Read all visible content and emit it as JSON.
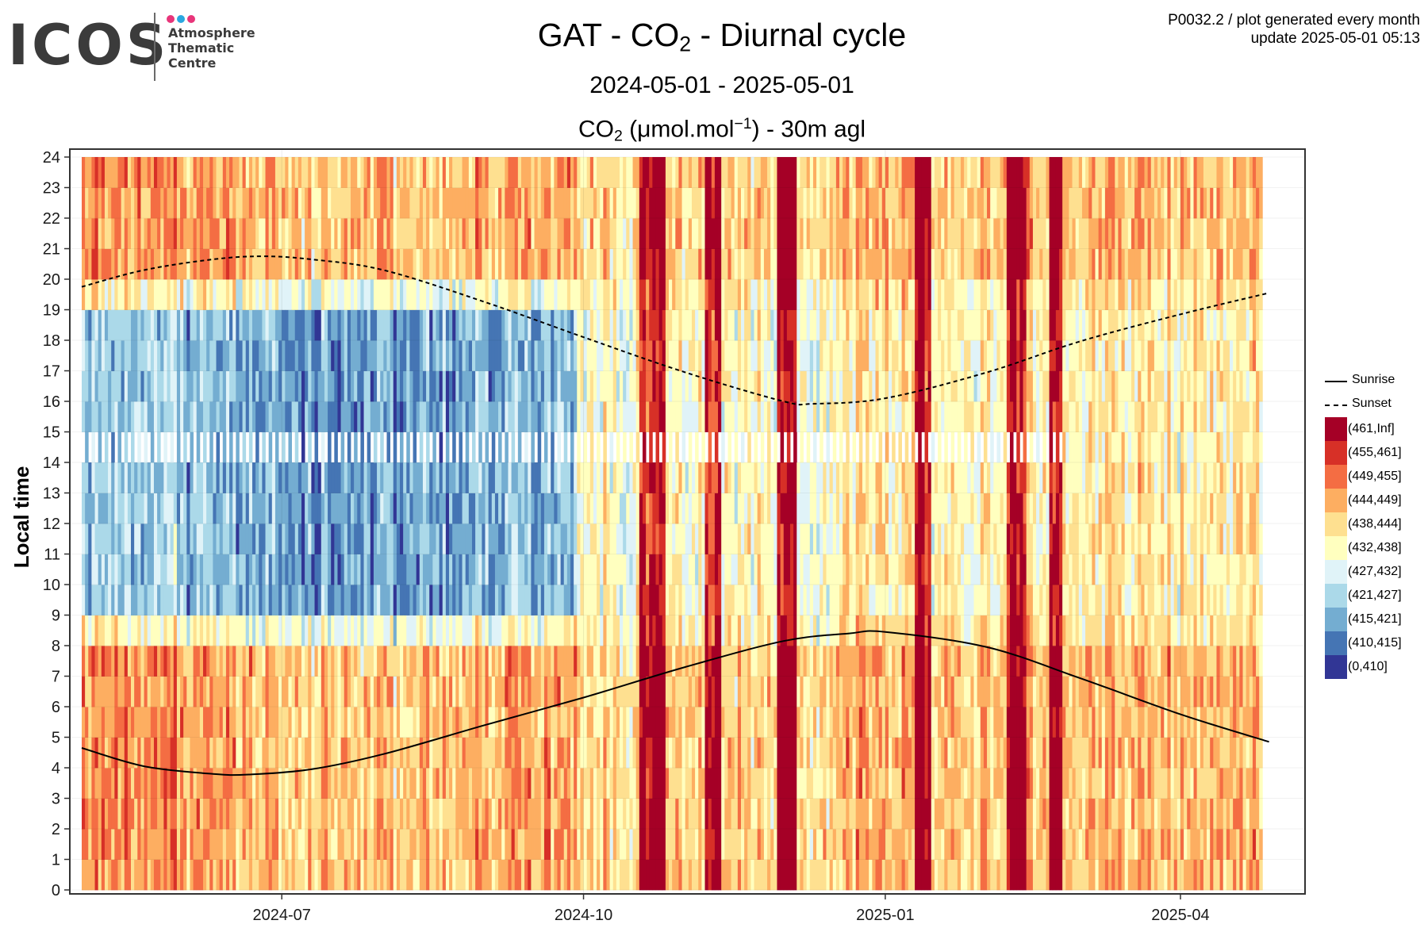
{
  "logo": {
    "word": "ICOS",
    "lines": [
      "Atmosphere",
      "Thematic",
      "Centre"
    ],
    "dot_colors": [
      "#e8357a",
      "#2aa7e0",
      "#e8357a"
    ]
  },
  "header": {
    "title_pre": "GAT - CO",
    "title_sub": "2",
    "title_post": " - Diurnal cycle",
    "date_range": "2024-05-01 - 2025-05-01",
    "unit_pre": "CO",
    "unit_sub": "2",
    "unit_mid": " (μmol.mol",
    "unit_sup": "−1",
    "unit_post": ") - 30m agl",
    "info_line1": "P0032.2 / plot generated every month",
    "info_line2": "update  2025-05-01 05:13"
  },
  "chart_data": {
    "type": "heatmap",
    "x_range": [
      "2024-05-01",
      "2025-05-01"
    ],
    "x_ticks": [
      "2024-07",
      "2024-10",
      "2025-01",
      "2025-04"
    ],
    "y_range": [
      0,
      24
    ],
    "y_ticks": [
      0,
      1,
      2,
      3,
      4,
      5,
      6,
      7,
      8,
      9,
      10,
      11,
      12,
      13,
      14,
      15,
      16,
      17,
      18,
      19,
      20,
      21,
      22,
      23,
      24
    ],
    "ylabel": "Local time",
    "grid": true,
    "legend_position": "right",
    "color_bins": [
      {
        "label": "(461,Inf]",
        "color": "#a50026"
      },
      {
        "label": "(455,461]",
        "color": "#d73027"
      },
      {
        "label": "(449,455]",
        "color": "#f46d43"
      },
      {
        "label": "(444,449]",
        "color": "#fdae61"
      },
      {
        "label": "(438,444]",
        "color": "#fee090"
      },
      {
        "label": "(432,438]",
        "color": "#ffffbf"
      },
      {
        "label": "(427,432]",
        "color": "#e0f3f8"
      },
      {
        "label": "(421,427]",
        "color": "#abd9e9"
      },
      {
        "label": "(415,421]",
        "color": "#74add1"
      },
      {
        "label": "(410,415]",
        "color": "#4575b4"
      },
      {
        "label": "(0,410]",
        "color": "#313695"
      }
    ],
    "series": [
      {
        "name": "Sunrise",
        "style": "solid",
        "x": [
          "2024-05-01",
          "2024-05-20",
          "2024-06-10",
          "2024-06-21",
          "2024-07-10",
          "2024-08-01",
          "2024-09-01",
          "2024-10-01",
          "2024-11-01",
          "2024-12-01",
          "2024-12-21",
          "2025-01-01",
          "2025-02-01",
          "2025-03-01",
          "2025-04-01",
          "2025-04-28"
        ],
        "y": [
          4.65,
          4.05,
          3.8,
          3.78,
          3.95,
          4.45,
          5.4,
          6.3,
          7.3,
          8.15,
          8.4,
          8.45,
          7.95,
          6.95,
          5.75,
          4.85
        ]
      },
      {
        "name": "Sunset",
        "style": "dashed",
        "x": [
          "2024-05-01",
          "2024-05-20",
          "2024-06-10",
          "2024-06-25",
          "2024-07-10",
          "2024-08-01",
          "2024-09-01",
          "2024-10-01",
          "2024-11-01",
          "2024-12-01",
          "2024-12-10",
          "2025-01-01",
          "2025-02-01",
          "2025-03-01",
          "2025-04-01",
          "2025-04-28"
        ],
        "y": [
          19.75,
          20.3,
          20.65,
          20.75,
          20.65,
          20.3,
          19.25,
          18.1,
          16.95,
          16.0,
          15.92,
          16.1,
          16.95,
          17.95,
          18.85,
          19.55
        ]
      }
    ]
  }
}
